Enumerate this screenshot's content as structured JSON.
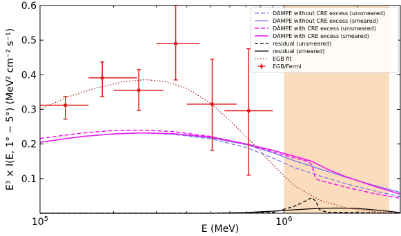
{
  "chart_data": {
    "type": "line",
    "xscale": "log",
    "xlim": [
      100000,
      3000000
    ],
    "ylim": [
      0.0,
      0.6
    ],
    "xlabel": "E (MeV)",
    "ylabel": "E³ × I(E, 1° − 5°) (MeV² cm⁻² s⁻¹)",
    "grid": false,
    "legend_position": "top-right",
    "x_ticks": [
      {
        "value": 100000,
        "base": "10",
        "exp": "5"
      },
      {
        "value": 1000000,
        "base": "10",
        "exp": "6"
      }
    ],
    "y_ticks": [
      {
        "value": 0.1,
        "label": "0.1"
      },
      {
        "value": 0.2,
        "label": "0.2"
      },
      {
        "value": 0.3,
        "label": "0.3"
      },
      {
        "value": 0.4,
        "label": "0.4"
      },
      {
        "value": 0.5,
        "label": "0.5"
      },
      {
        "value": 0.6,
        "label": "0.6"
      }
    ],
    "shaded_region": {
      "x": [
        1000000,
        2700000
      ],
      "color": "#fbdcbd"
    },
    "series": [
      {
        "name": "DAMPE without CRE excess (unsmeared)",
        "color": "#7777ee",
        "dash": "6,3",
        "width": 1.3,
        "x": [
          100000,
          150000,
          200000,
          260000,
          350000,
          500000,
          700000,
          900000,
          1100000,
          1400000,
          1800000,
          2300000,
          3000000
        ],
        "y": [
          0.205,
          0.222,
          0.229,
          0.232,
          0.228,
          0.215,
          0.19,
          0.16,
          0.132,
          0.108,
          0.085,
          0.066,
          0.048
        ]
      },
      {
        "name": "DAMPE without CRE excess (smeared)",
        "color": "#7777ee",
        "dash": "",
        "width": 1.3,
        "x": [
          100000,
          150000,
          200000,
          260000,
          350000,
          500000,
          700000,
          900000,
          1100000,
          1400000,
          1800000,
          2300000,
          3000000
        ],
        "y": [
          0.205,
          0.222,
          0.229,
          0.232,
          0.229,
          0.218,
          0.198,
          0.175,
          0.152,
          0.128,
          0.104,
          0.082,
          0.06
        ]
      },
      {
        "name": "DAMPE with CRE excess (unsmeared)",
        "color": "#ee11ee",
        "dash": "6,3",
        "width": 1.5,
        "x": [
          100000,
          150000,
          200000,
          260000,
          350000,
          500000,
          700000,
          900000,
          1100000,
          1250000,
          1300000,
          1350000,
          1400000,
          1800000,
          2300000,
          3000000
        ],
        "y": [
          0.216,
          0.232,
          0.239,
          0.24,
          0.236,
          0.222,
          0.2,
          0.178,
          0.16,
          0.15,
          0.14,
          0.1,
          0.095,
          0.075,
          0.058,
          0.043
        ]
      },
      {
        "name": "DAMPE with CRE excess (smeared)",
        "color": "#ee11ee",
        "dash": "",
        "width": 1.5,
        "x": [
          100000,
          150000,
          200000,
          260000,
          350000,
          500000,
          700000,
          900000,
          1100000,
          1300000,
          1500000,
          1800000,
          2300000,
          3000000
        ],
        "y": [
          0.205,
          0.222,
          0.229,
          0.232,
          0.23,
          0.22,
          0.2,
          0.182,
          0.165,
          0.15,
          0.128,
          0.105,
          0.08,
          0.055
        ]
      },
      {
        "name": "residual (unsmeared)",
        "color": "#000000",
        "dash": "5,3",
        "width": 1.3,
        "x": [
          100000,
          600000,
          900000,
          1100000,
          1200000,
          1300000,
          1350000,
          1400000,
          1500000,
          3000000
        ],
        "y": [
          0.0,
          0.0,
          0.002,
          0.02,
          0.032,
          0.045,
          0.035,
          0.01,
          0.003,
          0.0
        ]
      },
      {
        "name": "residual (smeared)",
        "color": "#000000",
        "dash": "",
        "width": 1.3,
        "x": [
          100000,
          500000,
          700000,
          900000,
          1100000,
          1300000,
          1600000,
          2000000,
          2500000,
          3000000
        ],
        "y": [
          0.0,
          0.0,
          0.002,
          0.006,
          0.01,
          0.013,
          0.015,
          0.014,
          0.008,
          0.002
        ]
      },
      {
        "name": "EGB fit",
        "color": "#a0291a",
        "dash": "1.5,2.5",
        "width": 1.3,
        "x": [
          100000,
          130000,
          170000,
          220000,
          270000,
          330000,
          400000,
          500000,
          600000,
          750000,
          900000,
          1100000,
          1400000,
          1800000,
          2400000,
          3000000
        ],
        "y": [
          0.3,
          0.336,
          0.362,
          0.38,
          0.386,
          0.38,
          0.36,
          0.318,
          0.268,
          0.2,
          0.14,
          0.08,
          0.038,
          0.015,
          0.004,
          0.001
        ]
      }
    ],
    "errorbar_series": {
      "name": "EGB/Fermi",
      "color": "#dd1111",
      "points": [
        {
          "x": 127000,
          "y": 0.312,
          "xlo": 100000,
          "xhi": 158000,
          "ylo": 0.272,
          "yhi": 0.337
        },
        {
          "x": 180000,
          "y": 0.391,
          "xlo": 158000,
          "xhi": 250000,
          "ylo": 0.337,
          "yhi": 0.437
        },
        {
          "x": 254000,
          "y": 0.355,
          "xlo": 200000,
          "xhi": 320000,
          "ylo": 0.297,
          "yhi": 0.415
        },
        {
          "x": 360000,
          "y": 0.49,
          "xlo": 300000,
          "xhi": 450000,
          "ylo": 0.385,
          "yhi": 0.6
        },
        {
          "x": 508000,
          "y": 0.315,
          "xlo": 400000,
          "xhi": 640000,
          "ylo": 0.182,
          "yhi": 0.445
        },
        {
          "x": 717000,
          "y": 0.296,
          "xlo": 570000,
          "xhi": 900000,
          "ylo": 0.11,
          "yhi": 0.475
        }
      ]
    }
  }
}
